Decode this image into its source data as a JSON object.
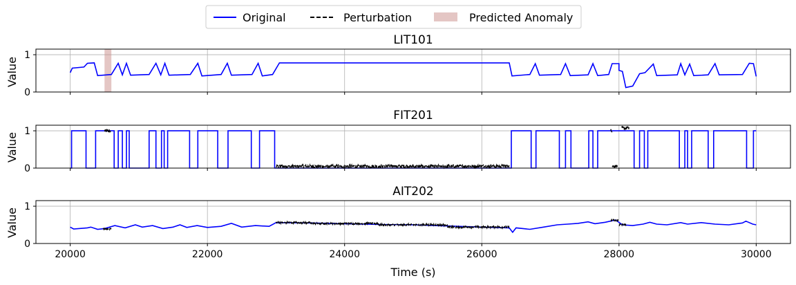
{
  "chart_data": {
    "type": "line",
    "xlabel": "Time (s)",
    "ylabel": "Value",
    "xlim": [
      19500,
      30500
    ],
    "ylim": [
      0,
      1.15
    ],
    "x_ticks": [
      20000,
      22000,
      24000,
      26000,
      28000,
      30000
    ],
    "y_ticks": [
      0,
      1
    ],
    "grid": true,
    "legend_placement": "top-center",
    "legend": [
      {
        "label": "Original",
        "color": "#0000ff",
        "style": "solid"
      },
      {
        "label": "Perturbation",
        "color": "#000000",
        "style": "dashed"
      },
      {
        "label": "Predicted Anomaly",
        "color": "#c98d8a",
        "style": "patch"
      }
    ],
    "panels": [
      {
        "title": "LIT101",
        "ylabel": "Value",
        "anomaly_ranges": [
          [
            20500,
            20600
          ]
        ],
        "original": [
          [
            20000,
            0.52
          ],
          [
            20030,
            0.64
          ],
          [
            20200,
            0.67
          ],
          [
            20250,
            0.77
          ],
          [
            20350,
            0.78
          ],
          [
            20400,
            0.44
          ],
          [
            20600,
            0.47
          ],
          [
            20700,
            0.77
          ],
          [
            20760,
            0.46
          ],
          [
            20820,
            0.77
          ],
          [
            20880,
            0.45
          ],
          [
            21150,
            0.47
          ],
          [
            21250,
            0.77
          ],
          [
            21320,
            0.46
          ],
          [
            21380,
            0.77
          ],
          [
            21440,
            0.45
          ],
          [
            21750,
            0.47
          ],
          [
            21860,
            0.77
          ],
          [
            21920,
            0.43
          ],
          [
            22200,
            0.47
          ],
          [
            22290,
            0.77
          ],
          [
            22350,
            0.45
          ],
          [
            22650,
            0.47
          ],
          [
            22740,
            0.77
          ],
          [
            22800,
            0.43
          ],
          [
            22950,
            0.47
          ],
          [
            23050,
            0.78
          ],
          [
            26400,
            0.78
          ],
          [
            26440,
            0.43
          ],
          [
            26700,
            0.47
          ],
          [
            26780,
            0.76
          ],
          [
            26840,
            0.45
          ],
          [
            27150,
            0.47
          ],
          [
            27220,
            0.76
          ],
          [
            27290,
            0.44
          ],
          [
            27550,
            0.46
          ],
          [
            27620,
            0.76
          ],
          [
            27690,
            0.44
          ],
          [
            27850,
            0.47
          ],
          [
            27900,
            0.76
          ],
          [
            28000,
            0.76
          ],
          [
            28000,
            0.58
          ],
          [
            28050,
            0.55
          ],
          [
            28100,
            0.12
          ],
          [
            28200,
            0.16
          ],
          [
            28300,
            0.49
          ],
          [
            28380,
            0.52
          ],
          [
            28500,
            0.75
          ],
          [
            28550,
            0.44
          ],
          [
            28850,
            0.46
          ],
          [
            28900,
            0.76
          ],
          [
            28960,
            0.46
          ],
          [
            29030,
            0.75
          ],
          [
            29090,
            0.44
          ],
          [
            29300,
            0.46
          ],
          [
            29400,
            0.76
          ],
          [
            29460,
            0.46
          ],
          [
            29800,
            0.47
          ],
          [
            29900,
            0.77
          ],
          [
            29960,
            0.76
          ],
          [
            30000,
            0.42
          ]
        ],
        "perturbation": []
      },
      {
        "title": "FIT201",
        "ylabel": "Value",
        "anomaly_ranges": [],
        "original": [
          [
            20000,
            0.0
          ],
          [
            20020,
            0.0
          ],
          [
            20020,
            1.0
          ],
          [
            20230,
            1.0
          ],
          [
            20230,
            0.0
          ],
          [
            20370,
            0.0
          ],
          [
            20370,
            1.0
          ],
          [
            20640,
            1.0
          ],
          [
            20640,
            0.0
          ],
          [
            20700,
            0.0
          ],
          [
            20700,
            1.0
          ],
          [
            20760,
            1.0
          ],
          [
            20760,
            0.0
          ],
          [
            20820,
            0.0
          ],
          [
            20820,
            1.0
          ],
          [
            20860,
            1.0
          ],
          [
            20860,
            0.0
          ],
          [
            21150,
            0.0
          ],
          [
            21150,
            1.0
          ],
          [
            21250,
            1.0
          ],
          [
            21250,
            0.0
          ],
          [
            21330,
            0.0
          ],
          [
            21330,
            1.0
          ],
          [
            21370,
            1.0
          ],
          [
            21370,
            0.0
          ],
          [
            21420,
            0.0
          ],
          [
            21420,
            1.0
          ],
          [
            21740,
            1.0
          ],
          [
            21740,
            0.0
          ],
          [
            21860,
            0.0
          ],
          [
            21860,
            1.0
          ],
          [
            22150,
            1.0
          ],
          [
            22150,
            0.0
          ],
          [
            22300,
            0.0
          ],
          [
            22300,
            1.0
          ],
          [
            22640,
            1.0
          ],
          [
            22640,
            0.0
          ],
          [
            22760,
            0.0
          ],
          [
            22760,
            1.0
          ],
          [
            22980,
            1.0
          ],
          [
            22980,
            0.0
          ],
          [
            26430,
            0.0
          ],
          [
            26430,
            1.0
          ],
          [
            26720,
            1.0
          ],
          [
            26720,
            0.0
          ],
          [
            26790,
            0.0
          ],
          [
            26790,
            1.0
          ],
          [
            27130,
            1.0
          ],
          [
            27130,
            0.0
          ],
          [
            27220,
            0.0
          ],
          [
            27220,
            1.0
          ],
          [
            27300,
            1.0
          ],
          [
            27300,
            0.0
          ],
          [
            27560,
            0.0
          ],
          [
            27560,
            1.0
          ],
          [
            27620,
            1.0
          ],
          [
            27620,
            0.0
          ],
          [
            27690,
            0.0
          ],
          [
            27690,
            1.0
          ],
          [
            27860,
            1.0
          ],
          [
            28220,
            1.0
          ],
          [
            28220,
            0.0
          ],
          [
            28300,
            0.0
          ],
          [
            28300,
            1.0
          ],
          [
            28370,
            1.0
          ],
          [
            28370,
            0.0
          ],
          [
            28420,
            0.0
          ],
          [
            28420,
            1.0
          ],
          [
            28880,
            1.0
          ],
          [
            28880,
            0.0
          ],
          [
            28960,
            0.0
          ],
          [
            28960,
            1.0
          ],
          [
            29000,
            1.0
          ],
          [
            29000,
            0.0
          ],
          [
            29060,
            0.0
          ],
          [
            29060,
            1.0
          ],
          [
            29300,
            1.0
          ],
          [
            29300,
            0.0
          ],
          [
            29380,
            0.0
          ],
          [
            29380,
            1.0
          ],
          [
            29860,
            1.0
          ],
          [
            29860,
            0.0
          ],
          [
            29960,
            0.0
          ],
          [
            29960,
            1.0
          ],
          [
            30000,
            1.0
          ]
        ],
        "perturbation": [
          {
            "x_range": [
              20500,
              20590
            ],
            "center": 1.0,
            "jitter": 0.05
          },
          {
            "x_range": [
              23000,
              26400
            ],
            "center": 0.05,
            "jitter": 0.04
          },
          {
            "x_range": [
              27880,
              27900
            ],
            "center": 1.0,
            "jitter": 0.05
          },
          {
            "x_range": [
              27900,
              27980
            ],
            "center": 0.05,
            "jitter": 0.04
          },
          {
            "x_range": [
              28040,
              28150
            ],
            "center": 1.07,
            "jitter": 0.05
          }
        ]
      },
      {
        "title": "AIT202",
        "ylabel": "Value",
        "anomaly_ranges": [],
        "original": [
          [
            20000,
            0.44
          ],
          [
            20050,
            0.39
          ],
          [
            20250,
            0.42
          ],
          [
            20300,
            0.44
          ],
          [
            20400,
            0.38
          ],
          [
            20500,
            0.4
          ],
          [
            20650,
            0.48
          ],
          [
            20800,
            0.42
          ],
          [
            20950,
            0.5
          ],
          [
            21050,
            0.44
          ],
          [
            21200,
            0.48
          ],
          [
            21350,
            0.4
          ],
          [
            21500,
            0.44
          ],
          [
            21600,
            0.5
          ],
          [
            21700,
            0.43
          ],
          [
            21850,
            0.48
          ],
          [
            22000,
            0.43
          ],
          [
            22200,
            0.46
          ],
          [
            22350,
            0.54
          ],
          [
            22500,
            0.44
          ],
          [
            22700,
            0.48
          ],
          [
            22900,
            0.46
          ],
          [
            23000,
            0.56
          ],
          [
            23500,
            0.55
          ],
          [
            24000,
            0.53
          ],
          [
            24500,
            0.51
          ],
          [
            25000,
            0.5
          ],
          [
            25500,
            0.47
          ],
          [
            26000,
            0.44
          ],
          [
            26400,
            0.42
          ],
          [
            26450,
            0.3
          ],
          [
            26500,
            0.42
          ],
          [
            26700,
            0.38
          ],
          [
            26900,
            0.44
          ],
          [
            27100,
            0.5
          ],
          [
            27250,
            0.52
          ],
          [
            27400,
            0.54
          ],
          [
            27550,
            0.58
          ],
          [
            27650,
            0.53
          ],
          [
            27800,
            0.57
          ],
          [
            27950,
            0.63
          ],
          [
            28050,
            0.5
          ],
          [
            28200,
            0.48
          ],
          [
            28350,
            0.52
          ],
          [
            28450,
            0.57
          ],
          [
            28550,
            0.52
          ],
          [
            28700,
            0.5
          ],
          [
            28900,
            0.56
          ],
          [
            29000,
            0.52
          ],
          [
            29200,
            0.56
          ],
          [
            29400,
            0.52
          ],
          [
            29600,
            0.5
          ],
          [
            29800,
            0.55
          ],
          [
            29850,
            0.6
          ],
          [
            29950,
            0.52
          ],
          [
            30000,
            0.5
          ]
        ],
        "perturbation": [
          {
            "x_range": [
              20480,
              20600
            ],
            "center": 0.39,
            "jitter": 0.03
          },
          {
            "x_range": [
              23000,
              23500
            ],
            "center": 0.56,
            "jitter": 0.025
          },
          {
            "x_range": [
              23500,
              24500
            ],
            "center": 0.535,
            "jitter": 0.025
          },
          {
            "x_range": [
              24500,
              25500
            ],
            "center": 0.5,
            "jitter": 0.025
          },
          {
            "x_range": [
              25500,
              26400
            ],
            "center": 0.44,
            "jitter": 0.025
          },
          {
            "x_range": [
              27880,
              28000
            ],
            "center": 0.62,
            "jitter": 0.03
          },
          {
            "x_range": [
              28000,
              28100
            ],
            "center": 0.5,
            "jitter": 0.03
          }
        ]
      }
    ]
  }
}
